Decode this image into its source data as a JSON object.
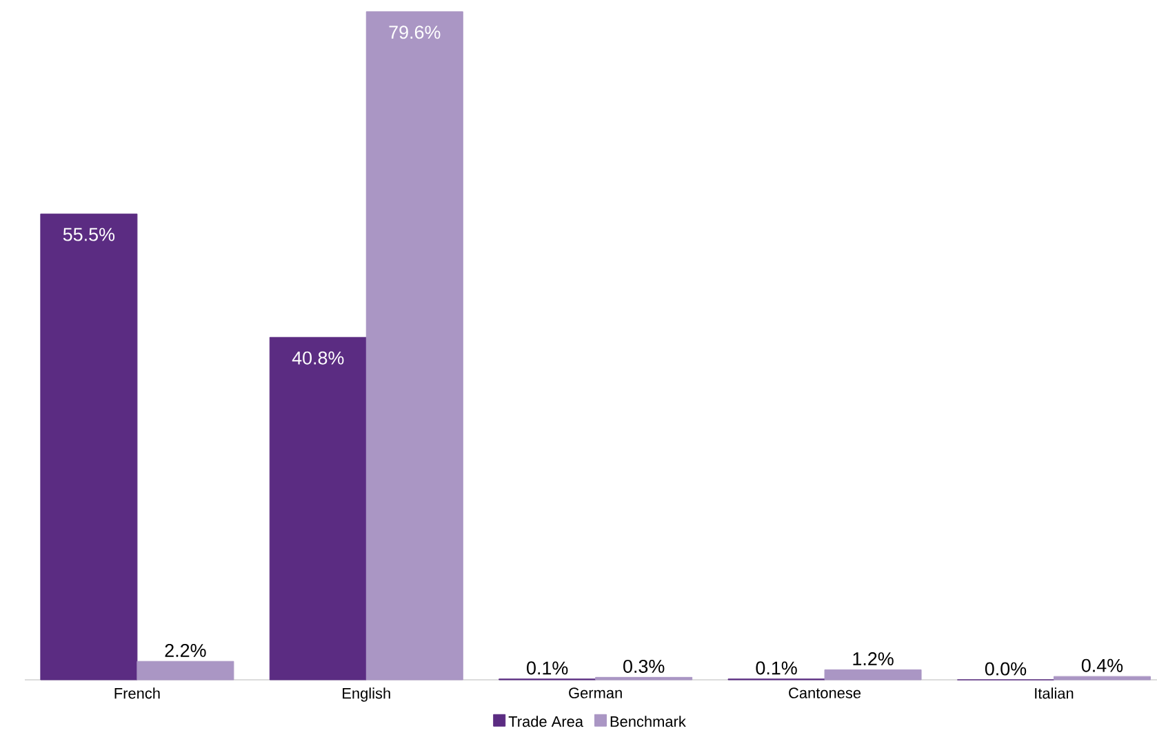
{
  "chart_data": {
    "type": "bar",
    "categories": [
      "French",
      "English",
      "German",
      "Cantonese",
      "Italian"
    ],
    "series": [
      {
        "name": "Trade Area",
        "color": "#5b2c82",
        "values": [
          55.5,
          40.8,
          0.1,
          0.1,
          0.0
        ],
        "value_labels": [
          "55.5%",
          "40.8%",
          "0.1%",
          "0.1%",
          "0.0%"
        ]
      },
      {
        "name": "Benchmark",
        "color": "#aa96c4",
        "values": [
          2.2,
          79.6,
          0.3,
          1.2,
          0.4
        ],
        "value_labels": [
          "2.2%",
          "79.6%",
          "0.3%",
          "1.2%",
          "0.4%"
        ]
      }
    ],
    "ylim": [
      0,
      80
    ],
    "tick_labels": "x",
    "legend": "bottom",
    "grid": false
  }
}
